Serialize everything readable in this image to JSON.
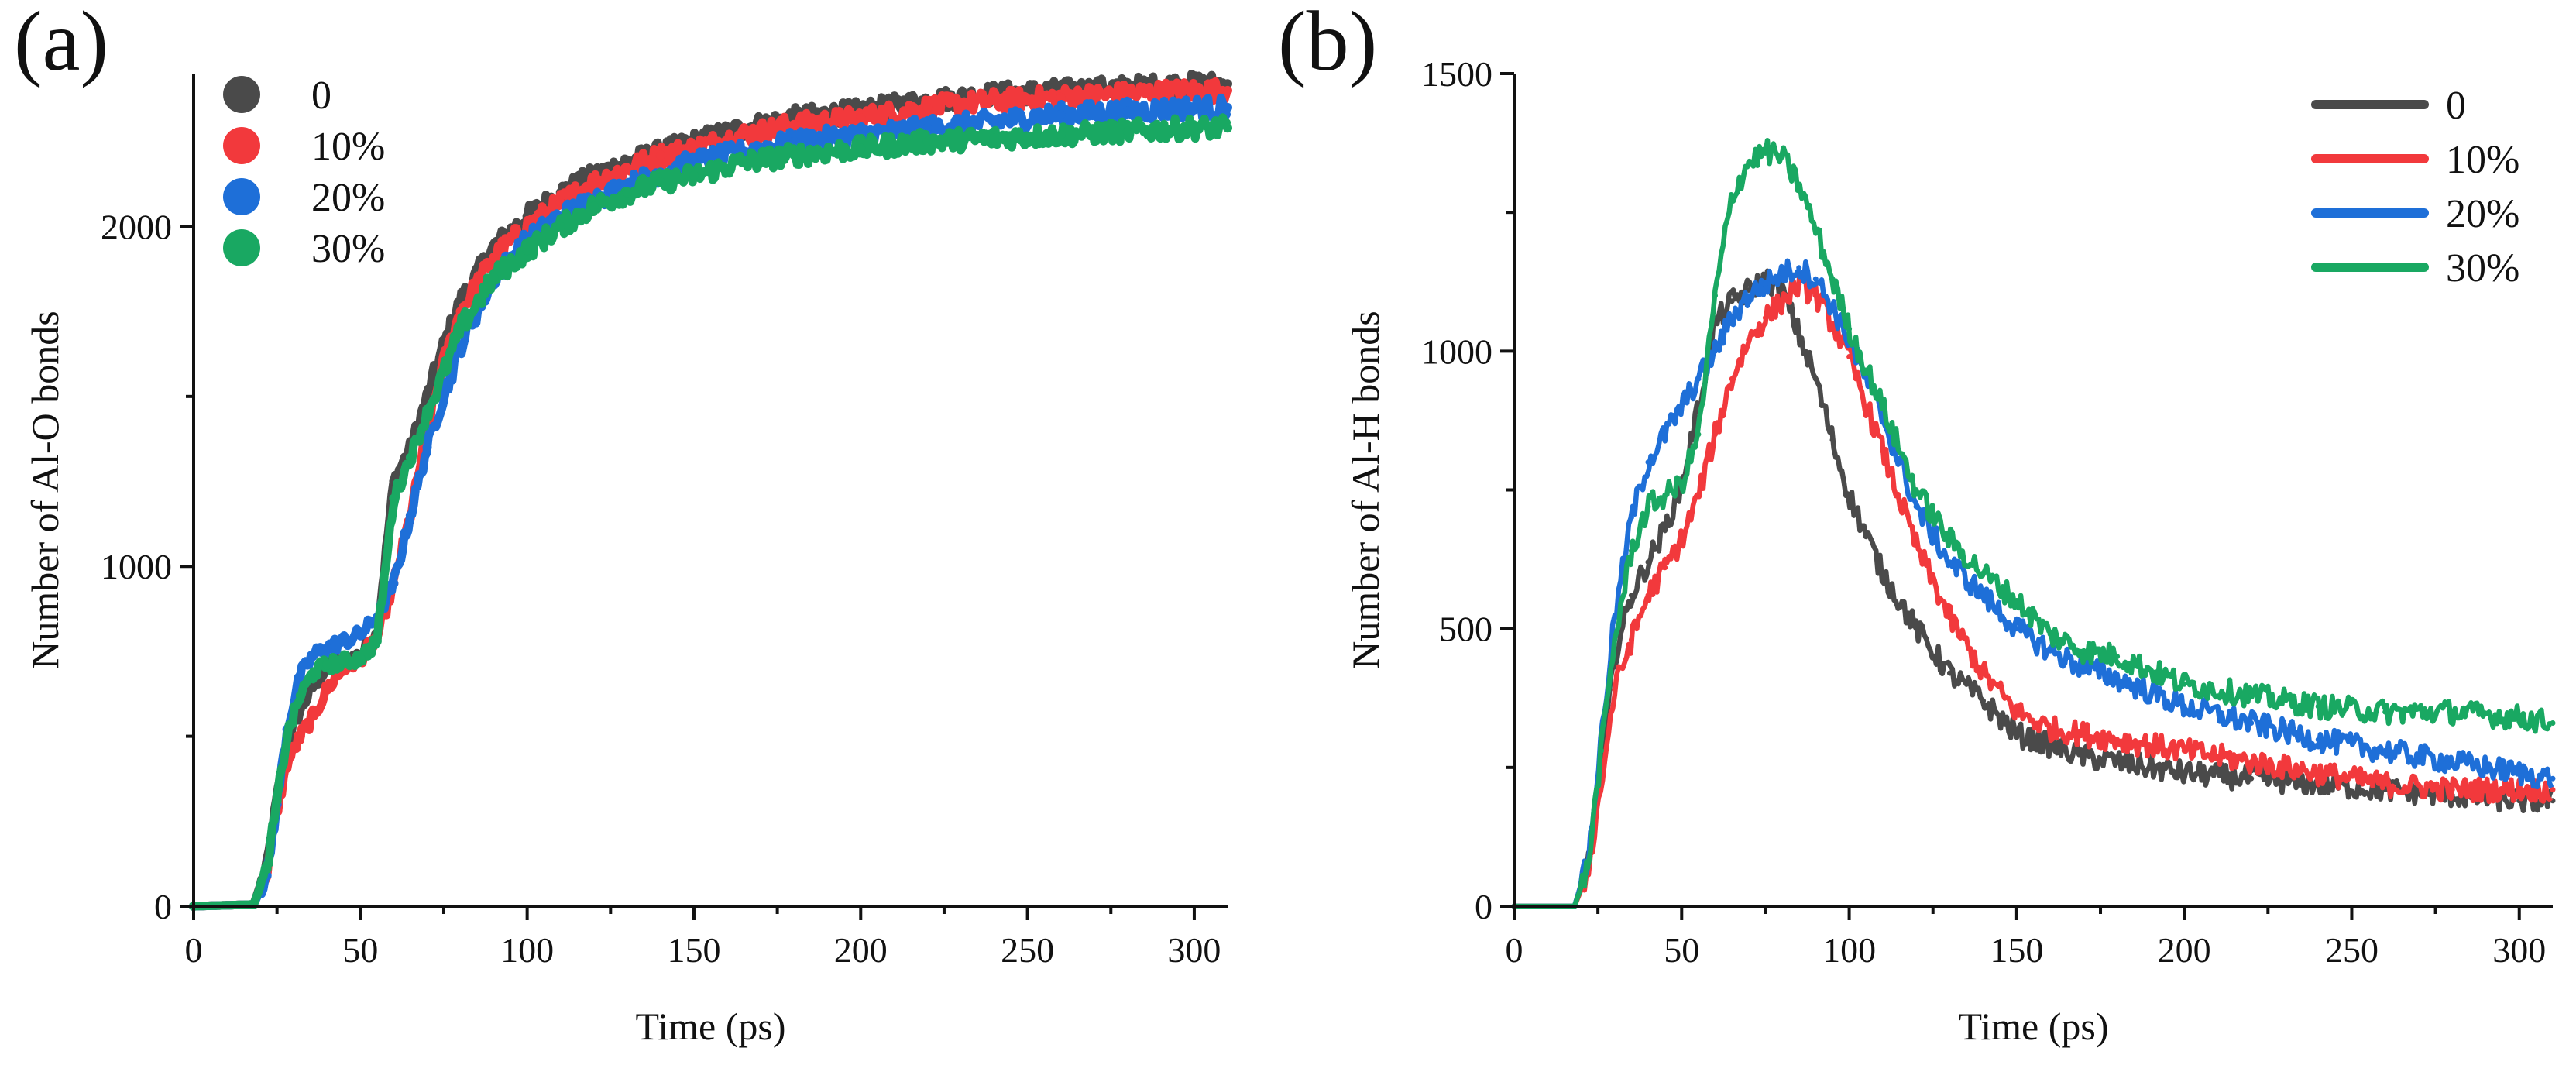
{
  "figure": {
    "panels": [
      "(a)",
      "(b)"
    ]
  },
  "chart_data": [
    {
      "panel": "(a)",
      "type": "scatter",
      "title": "",
      "xlabel": "Time (ps)",
      "ylabel": "Number of Al-O bonds",
      "xlim": [
        0,
        310
      ],
      "ylim": [
        0,
        2450
      ],
      "xticks": [
        0,
        50,
        100,
        150,
        200,
        250,
        300
      ],
      "yticks": [
        0,
        1000,
        2000
      ],
      "legend_position": "top-left",
      "x": [
        0,
        18,
        22,
        25,
        28,
        32,
        36,
        40,
        45,
        50,
        55,
        60,
        65,
        70,
        75,
        80,
        90,
        100,
        110,
        120,
        130,
        140,
        150,
        165,
        180,
        200,
        220,
        240,
        260,
        280,
        300,
        310
      ],
      "series": [
        {
          "name": "0",
          "color": "#4a4a4a",
          "values": [
            0,
            5,
            120,
            320,
            480,
            580,
            650,
            700,
            720,
            740,
            800,
            1250,
            1350,
            1500,
            1650,
            1780,
            1940,
            2030,
            2100,
            2150,
            2190,
            2220,
            2250,
            2290,
            2320,
            2340,
            2370,
            2390,
            2400,
            2410,
            2420,
            2420
          ]
        },
        {
          "name": "10%",
          "color": "#f2393c",
          "values": [
            0,
            5,
            100,
            280,
            420,
            500,
            560,
            640,
            700,
            730,
            790,
            950,
            1150,
            1400,
            1600,
            1750,
            1910,
            2000,
            2070,
            2130,
            2170,
            2210,
            2230,
            2270,
            2300,
            2320,
            2350,
            2370,
            2380,
            2390,
            2400,
            2400
          ]
        },
        {
          "name": "20%",
          "color": "#1e6fd8",
          "values": [
            0,
            5,
            90,
            300,
            520,
            680,
            740,
            760,
            780,
            800,
            850,
            950,
            1150,
            1350,
            1500,
            1650,
            1850,
            1960,
            2030,
            2080,
            2120,
            2160,
            2190,
            2220,
            2250,
            2270,
            2290,
            2310,
            2330,
            2340,
            2350,
            2350
          ]
        },
        {
          "name": "30%",
          "color": "#19a862",
          "values": [
            0,
            5,
            110,
            310,
            500,
            620,
            690,
            710,
            720,
            730,
            780,
            1200,
            1320,
            1450,
            1570,
            1700,
            1850,
            1930,
            2000,
            2060,
            2100,
            2130,
            2150,
            2190,
            2210,
            2230,
            2250,
            2260,
            2270,
            2280,
            2290,
            2290
          ]
        }
      ]
    },
    {
      "panel": "(b)",
      "type": "line",
      "title": "",
      "xlabel": "Time (ps)",
      "ylabel": "Number of Al-H bonds",
      "xlim": [
        0,
        310
      ],
      "ylim": [
        0,
        1500
      ],
      "xticks": [
        0,
        50,
        100,
        150,
        200,
        250,
        300
      ],
      "yticks": [
        0,
        500,
        1000,
        1500
      ],
      "legend_position": "top-right",
      "x": [
        0,
        18,
        22,
        26,
        30,
        35,
        40,
        45,
        50,
        55,
        60,
        65,
        70,
        75,
        80,
        85,
        90,
        95,
        100,
        110,
        120,
        130,
        140,
        150,
        160,
        170,
        180,
        200,
        220,
        240,
        260,
        280,
        300,
        310
      ],
      "series": [
        {
          "name": "0",
          "color": "#4a4a4a",
          "values": [
            0,
            0,
            80,
            250,
            450,
            560,
            620,
            680,
            760,
            900,
            1050,
            1090,
            1110,
            1130,
            1110,
            1030,
            950,
            840,
            740,
            600,
            500,
            420,
            370,
            310,
            290,
            270,
            260,
            240,
            230,
            220,
            210,
            200,
            190,
            190
          ]
        },
        {
          "name": "10%",
          "color": "#f2393c",
          "values": [
            0,
            0,
            60,
            220,
            390,
            480,
            560,
            610,
            660,
            740,
            850,
            950,
            1020,
            1060,
            1090,
            1120,
            1100,
            1050,
            990,
            820,
            650,
            520,
            420,
            350,
            320,
            310,
            300,
            280,
            260,
            240,
            220,
            210,
            210,
            210
          ]
        },
        {
          "name": "20%",
          "color": "#1e6fd8",
          "values": [
            0,
            0,
            80,
            300,
            520,
            700,
            800,
            850,
            900,
            950,
            1000,
            1060,
            1100,
            1120,
            1140,
            1150,
            1130,
            1080,
            1020,
            880,
            720,
            620,
            560,
            500,
            460,
            430,
            410,
            360,
            330,
            300,
            280,
            260,
            240,
            230
          ]
        },
        {
          "name": "30%",
          "color": "#19a862",
          "values": [
            0,
            0,
            70,
            280,
            480,
            640,
            720,
            740,
            760,
            850,
            1100,
            1280,
            1340,
            1360,
            1350,
            1300,
            1220,
            1130,
            1040,
            900,
            750,
            660,
            600,
            550,
            490,
            460,
            450,
            400,
            380,
            360,
            350,
            350,
            340,
            330
          ]
        }
      ]
    }
  ]
}
